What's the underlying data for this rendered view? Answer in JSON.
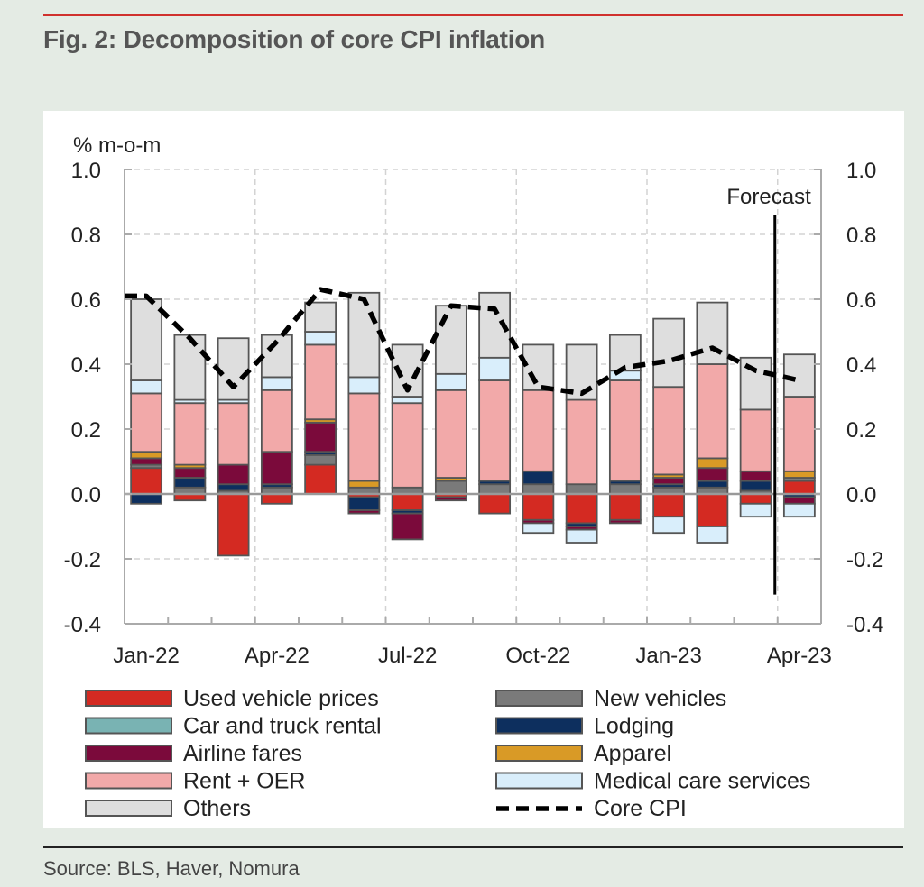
{
  "header": {
    "title": "Fig. 2: Decomposition of core CPI inflation"
  },
  "footer": {
    "source": "Source: BLS, Haver, Nomura"
  },
  "colors": {
    "accent_rule": "#d0312d",
    "Used vehicle prices": "#d42a22",
    "New vehicles": "#7a7a7a",
    "Car and truck rental": "#79b3b3",
    "Lodging": "#0d2f5e",
    "Airline fares": "#7b0a3b",
    "Apparel": "#d99a26",
    "Rent + OER": "#f2a9a9",
    "Medical care services": "#d9eefb",
    "Others": "#dedede"
  },
  "chart_data": {
    "type": "bar",
    "stacked": true,
    "title": "",
    "ylabel": "% m-o-m",
    "ylim": [
      -0.4,
      1.0
    ],
    "yticks": [
      "1.0",
      "0.8",
      "0.6",
      "0.4",
      "0.2",
      "0.0",
      "-0.2",
      "-0.4"
    ],
    "ytick_values": [
      1.0,
      0.8,
      0.6,
      0.4,
      0.2,
      0.0,
      -0.2,
      -0.4
    ],
    "xtick_labels": [
      "Jan-22",
      "Apr-22",
      "Jul-22",
      "Oct-22",
      "Jan-23",
      "Apr-23"
    ],
    "xtick_index": [
      0,
      3,
      6,
      9,
      12,
      15
    ],
    "categories": [
      "Jan-22",
      "Feb-22",
      "Mar-22",
      "Apr-22",
      "May-22",
      "Jun-22",
      "Jul-22",
      "Aug-22",
      "Sep-22",
      "Oct-22",
      "Nov-22",
      "Dec-22",
      "Jan-23",
      "Feb-23",
      "Mar-23",
      "Apr-23"
    ],
    "annotation": {
      "label": "Forecast",
      "between_index": [
        14,
        15
      ]
    },
    "series": [
      {
        "name": "Used vehicle prices",
        "values": [
          0.08,
          -0.02,
          -0.19,
          -0.03,
          0.09,
          -0.01,
          -0.05,
          -0.01,
          -0.06,
          -0.08,
          -0.09,
          -0.08,
          -0.07,
          -0.1,
          -0.03,
          0.04
        ]
      },
      {
        "name": "New vehicles",
        "values": [
          0.01,
          0.02,
          0.01,
          0.02,
          0.03,
          0.02,
          0.02,
          0.04,
          0.03,
          0.03,
          0.03,
          0.03,
          0.02,
          0.02,
          0.01,
          0.01
        ]
      },
      {
        "name": "Car and truck rental",
        "values": [
          0.0,
          0.0,
          0.0,
          0.0,
          0.0,
          0.0,
          0.0,
          0.0,
          0.0,
          0.0,
          0.0,
          0.0,
          0.0,
          0.0,
          0.0,
          0.0
        ]
      },
      {
        "name": "Lodging",
        "values": [
          -0.03,
          0.03,
          0.02,
          0.01,
          0.01,
          -0.04,
          -0.01,
          0.0,
          0.01,
          0.04,
          -0.01,
          0.01,
          0.01,
          0.02,
          0.03,
          -0.01
        ]
      },
      {
        "name": "Airline fares",
        "values": [
          0.02,
          0.03,
          0.06,
          0.1,
          0.09,
          -0.01,
          -0.08,
          -0.01,
          0.0,
          -0.01,
          -0.01,
          -0.01,
          0.02,
          0.04,
          0.03,
          -0.02
        ]
      },
      {
        "name": "Apparel",
        "values": [
          0.02,
          0.01,
          0.0,
          0.0,
          0.01,
          0.02,
          0.0,
          0.01,
          0.0,
          0.0,
          0.0,
          0.0,
          0.01,
          0.03,
          0.0,
          0.02
        ]
      },
      {
        "name": "Rent + OER",
        "values": [
          0.18,
          0.19,
          0.19,
          0.19,
          0.23,
          0.27,
          0.26,
          0.27,
          0.31,
          0.25,
          0.26,
          0.31,
          0.27,
          0.29,
          0.19,
          0.23
        ]
      },
      {
        "name": "Medical care services",
        "values": [
          0.04,
          0.01,
          0.01,
          0.04,
          0.04,
          0.05,
          0.02,
          0.05,
          0.07,
          -0.03,
          -0.04,
          0.03,
          -0.05,
          -0.05,
          -0.04,
          -0.04
        ]
      },
      {
        "name": "Others",
        "values": [
          0.25,
          0.2,
          0.19,
          0.13,
          0.09,
          0.26,
          0.16,
          0.21,
          0.2,
          0.14,
          0.17,
          0.11,
          0.21,
          0.19,
          0.16,
          0.13
        ]
      }
    ],
    "line": {
      "name": "Core CPI",
      "values": [
        0.61,
        0.48,
        0.33,
        0.47,
        0.63,
        0.6,
        0.32,
        0.58,
        0.57,
        0.33,
        0.31,
        0.39,
        0.41,
        0.45,
        0.38,
        0.35
      ]
    },
    "legend": {
      "position": "bottom",
      "entries": [
        "Used vehicle prices",
        "New vehicles",
        "Car and truck rental",
        "Lodging",
        "Airline fares",
        "Apparel",
        "Rent + OER",
        "Medical care services",
        "Others",
        "Core CPI"
      ]
    }
  }
}
